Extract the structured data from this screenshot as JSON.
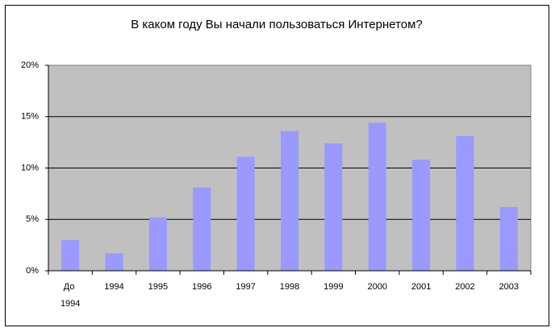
{
  "chart_data": {
    "type": "bar",
    "title": "В каком году Вы начали пользоваться Интернетом?",
    "categories": [
      "До 1994",
      "1994",
      "1995",
      "1996",
      "1997",
      "1998",
      "1999",
      "2000",
      "2001",
      "2002",
      "2003"
    ],
    "values": [
      3.0,
      1.7,
      5.2,
      8.1,
      11.1,
      13.6,
      12.4,
      14.4,
      10.8,
      13.1,
      6.2
    ],
    "color": "#9999ff",
    "ylim": [
      0,
      20
    ],
    "yticks": [
      {
        "value": 0,
        "label": "0%"
      },
      {
        "value": 5,
        "label": "5%"
      },
      {
        "value": 10,
        "label": "10%"
      },
      {
        "value": 15,
        "label": "15%"
      },
      {
        "value": 20,
        "label": "20%"
      }
    ],
    "grid": true
  }
}
